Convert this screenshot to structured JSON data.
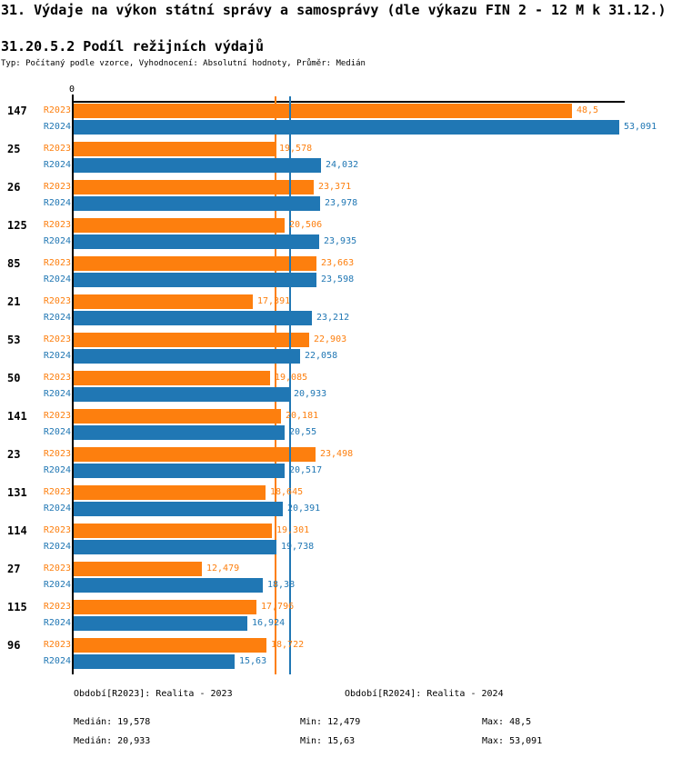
{
  "title": "31. Výdaje na výkon státní správy a samosprávy (dle výkazu FIN 2 - 12 M k 31.12.)",
  "subtitle": "31.20.5.2 Podíl režijních výdajů",
  "meta": "Typ: Počítaný podle vzorce, Vyhodnocení: Absolutní hodnoty, Průměr: Medián",
  "colors": {
    "r2023": "#fd7f0e",
    "r2024": "#2077b4",
    "axis": "#000000"
  },
  "chart_data": {
    "type": "bar",
    "orientation": "horizontal",
    "title": "31.20.5.2 Podíl režijních výdajů",
    "axis_zero_label": "0",
    "xlim": [
      0,
      53.091
    ],
    "grid": false,
    "legend_position": "bottom",
    "categories": [
      "147",
      "25",
      "26",
      "125",
      "85",
      "21",
      "53",
      "50",
      "141",
      "23",
      "131",
      "114",
      "27",
      "115",
      "96"
    ],
    "series": [
      {
        "name": "R2023",
        "legend": "Období[R2023]: Realita - 2023",
        "color": "#fd7f0e",
        "values": [
          48.5,
          19.578,
          23.371,
          20.506,
          23.663,
          17.391,
          22.903,
          19.085,
          20.181,
          23.498,
          18.645,
          19.301,
          12.479,
          17.796,
          18.722
        ],
        "labels": [
          "48,5",
          "19,578",
          "23,371",
          "20,506",
          "23,663",
          "17,391",
          "22,903",
          "19,085",
          "20,181",
          "23,498",
          "18,645",
          "19,301",
          "12,479",
          "17,796",
          "18,722"
        ],
        "median": 19.578
      },
      {
        "name": "R2024",
        "legend": "Období[R2024]: Realita - 2024",
        "color": "#2077b4",
        "values": [
          53.091,
          24.032,
          23.978,
          23.935,
          23.598,
          23.212,
          22.058,
          20.933,
          20.55,
          20.517,
          20.391,
          19.738,
          18.38,
          16.924,
          15.63
        ],
        "labels": [
          "53,091",
          "24,032",
          "23,978",
          "23,935",
          "23,598",
          "23,212",
          "22,058",
          "20,933",
          "20,55",
          "20,517",
          "20,391",
          "19,738",
          "18,38",
          "16,924",
          "15,63"
        ],
        "median": 20.933
      }
    ]
  },
  "legend": {
    "r2023": "Období[R2023]: Realita - 2023",
    "r2024": "Období[R2024]: Realita - 2024"
  },
  "stats": {
    "r2023": {
      "median": "Medián: 19,578",
      "min": "Min: 12,479",
      "max": "Max: 48,5"
    },
    "r2024": {
      "median": "Medián: 20,933",
      "min": "Min: 15,63",
      "max": "Max: 53,091"
    }
  }
}
